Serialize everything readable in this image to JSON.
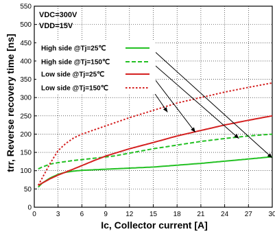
{
  "chart_data": {
    "type": "line",
    "xlabel": "Ic, Collector current [A]",
    "ylabel": "trr, Reverse recovery time [ns]",
    "xlim": [
      0,
      30
    ],
    "ylim": [
      0,
      550
    ],
    "xticks": [
      "0",
      "3",
      "6",
      "9",
      "12",
      "15",
      "18",
      "21",
      "24",
      "27",
      "30"
    ],
    "yticks": [
      "0",
      "50",
      "100",
      "150",
      "200",
      "250",
      "300",
      "350",
      "400",
      "450",
      "500",
      "550"
    ],
    "grid": "dotted",
    "conditions": [
      "VDC=300V",
      "VDD=15V"
    ],
    "legend_position": "upper-left",
    "series": [
      {
        "name": "High side @Tj=25℃",
        "color": "#22c022",
        "dash": "solid",
        "x": [
          0.5,
          1,
          2,
          3,
          4,
          5,
          6,
          8,
          10,
          12,
          15,
          18,
          21,
          24,
          27,
          30
        ],
        "y": [
          55,
          66,
          80,
          90,
          96,
          99,
          101,
          103,
          105,
          107,
          110,
          115,
          120,
          126,
          132,
          138
        ]
      },
      {
        "name": "High side @Tj=150℃",
        "color": "#22c022",
        "dash": "dashed",
        "x": [
          0.5,
          1,
          2,
          3,
          5,
          8,
          10,
          12,
          15,
          18,
          21,
          24,
          27,
          30
        ],
        "y": [
          105,
          110,
          118,
          122,
          128,
          135,
          140,
          148,
          160,
          170,
          180,
          188,
          195,
          200
        ]
      },
      {
        "name": "Low side @Tj=25℃",
        "color": "#d42020",
        "dash": "solid",
        "x": [
          0.5,
          1,
          2,
          3,
          5,
          7,
          9,
          12,
          15,
          18,
          21,
          24,
          27,
          30
        ],
        "y": [
          60,
          66,
          78,
          88,
          105,
          123,
          140,
          160,
          177,
          195,
          210,
          225,
          238,
          250
        ]
      },
      {
        "name": "Low side @Tj=150℃",
        "color": "#d42020",
        "dash": "dotted",
        "x": [
          0.5,
          1,
          1.5,
          2,
          3,
          4,
          5,
          6,
          8,
          10,
          12,
          15,
          18,
          21,
          24,
          27,
          30
        ],
        "y": [
          60,
          80,
          100,
          120,
          155,
          175,
          190,
          200,
          215,
          230,
          245,
          265,
          285,
          300,
          315,
          328,
          340
        ]
      }
    ],
    "annotations": [
      {
        "from_series": 0,
        "to_x": 30,
        "to_y": 135
      },
      {
        "from_series": 1,
        "to_x": 25.8,
        "to_y": 188
      },
      {
        "from_series": 2,
        "to_x": 20.3,
        "to_y": 205
      },
      {
        "from_series": 3,
        "to_x": 16.8,
        "to_y": 260
      }
    ]
  }
}
